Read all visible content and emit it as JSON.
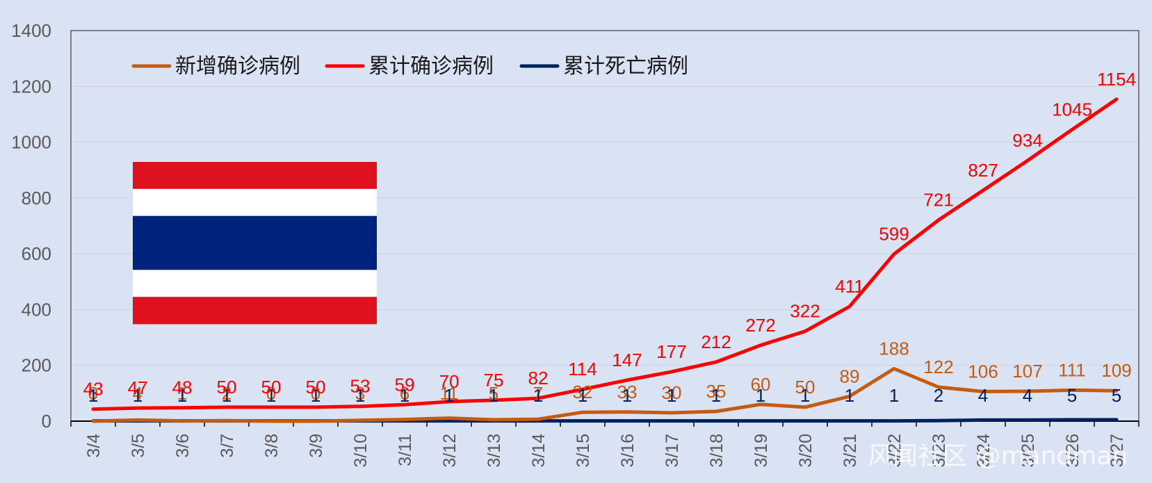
{
  "chart_data": {
    "type": "line",
    "categories": [
      "3/4",
      "3/5",
      "3/6",
      "3/7",
      "3/8",
      "3/9",
      "3/10",
      "3/11",
      "3/12",
      "3/13",
      "3/14",
      "3/15",
      "3/16",
      "3/17",
      "3/18",
      "3/19",
      "3/20",
      "3/21",
      "3/22",
      "3/23",
      "3/24",
      "3/25",
      "3/26",
      "3/27"
    ],
    "series": [
      {
        "name": "新增确诊病例",
        "color": "#c55a11",
        "values": [
          0,
          4,
          1,
          2,
          0,
          0,
          3,
          6,
          11,
          5,
          7,
          32,
          33,
          30,
          35,
          60,
          50,
          89,
          188,
          122,
          106,
          107,
          111,
          109
        ]
      },
      {
        "name": "累计确诊病例",
        "color": "#ff0000",
        "values": [
          43,
          47,
          48,
          50,
          50,
          50,
          53,
          59,
          70,
          75,
          82,
          114,
          147,
          177,
          212,
          272,
          322,
          411,
          599,
          721,
          827,
          934,
          1045,
          1154
        ]
      },
      {
        "name": "累计死亡病例",
        "color": "#002060",
        "values": [
          1,
          1,
          1,
          1,
          1,
          1,
          1,
          1,
          1,
          1,
          1,
          1,
          1,
          1,
          1,
          1,
          1,
          1,
          1,
          2,
          4,
          4,
          5,
          5
        ]
      }
    ],
    "ylim": [
      0,
      1400
    ],
    "yticks": [
      0,
      200,
      400,
      600,
      800,
      1000,
      1200,
      1400
    ],
    "legend": "top-left",
    "grid": true
  },
  "flag": {
    "name": "thailand-flag-icon",
    "colors": [
      "#e0111e",
      "#ffffff",
      "#00247d",
      "#ffffff",
      "#e0111e"
    ]
  },
  "watermark": "风闻社区 @mandman"
}
